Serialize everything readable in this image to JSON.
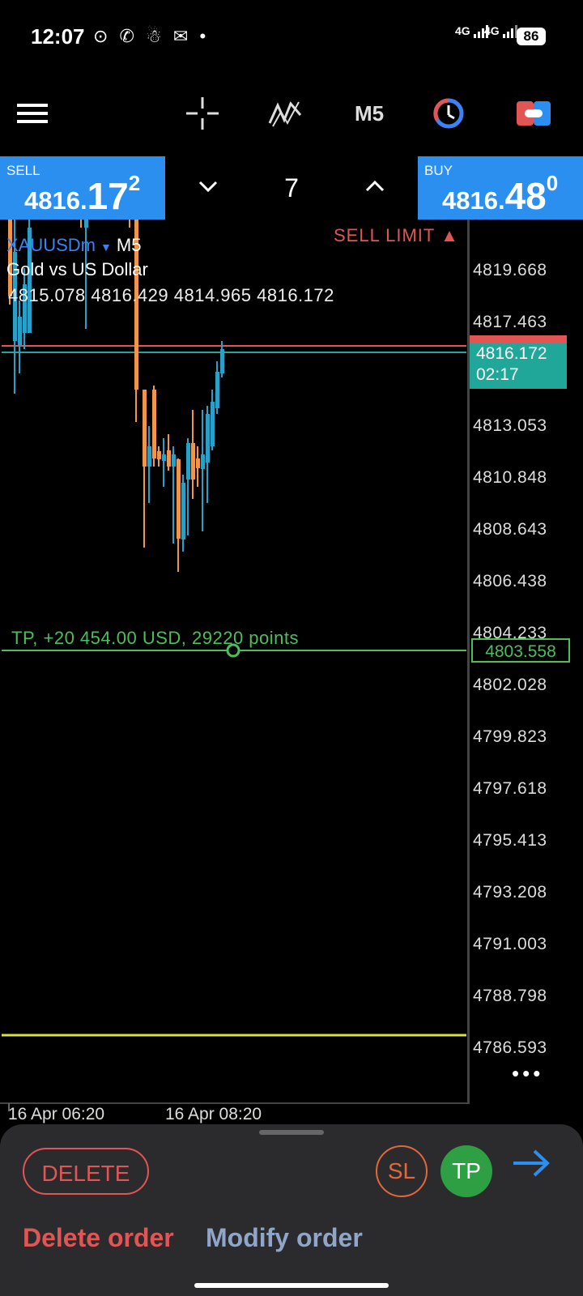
{
  "status_bar": {
    "time": "12:07",
    "notifications": "⊙ ✆ ☃ ✉ •",
    "signal_1": "4G",
    "signal_2": "4G",
    "battery": "86"
  },
  "toolbar": {
    "timeframe": "M5"
  },
  "trade": {
    "sell_label": "SELL",
    "sell_price_main": "4816.",
    "sell_price_big": "17",
    "sell_price_sup": "2",
    "buy_label": "BUY",
    "buy_price_main": "4816.",
    "buy_price_big": "48",
    "buy_price_sup": "0",
    "volume": "7"
  },
  "chart": {
    "symbol": "XAUUSDm",
    "timeframe": "M5",
    "description": "Gold vs US Dollar",
    "ohlc": "4815.078 4816.429 4814.965 4816.172",
    "order_type": "SELL LIMIT",
    "tp_label": "TP, +20 454.00 USD, 29220 points",
    "tp_price": "4803.558",
    "current_price": "4816.172",
    "countdown": "02:17",
    "price_levels": [
      "4819.668",
      "4817.463",
      "4813.053",
      "4810.848",
      "4808.643",
      "4806.438",
      "4804.233",
      "4802.028",
      "4799.823",
      "4797.618",
      "4795.413",
      "4793.208",
      "4791.003",
      "4788.798",
      "4786.593"
    ],
    "time_labels": [
      "16 Apr 06:20",
      "16 Apr 08:20"
    ],
    "colors": {
      "bull": "#2aa0c8",
      "bear": "#f0954a",
      "sell_limit_line": "#e25555",
      "tp_line": "#4cbf5a",
      "current_line": "#21a69a",
      "yellow_line": "#d7e23a"
    }
  },
  "sheet": {
    "delete": "DELETE",
    "sl": "SL",
    "tp": "TP",
    "delete_order": "Delete order",
    "modify_order": "Modify order"
  }
}
